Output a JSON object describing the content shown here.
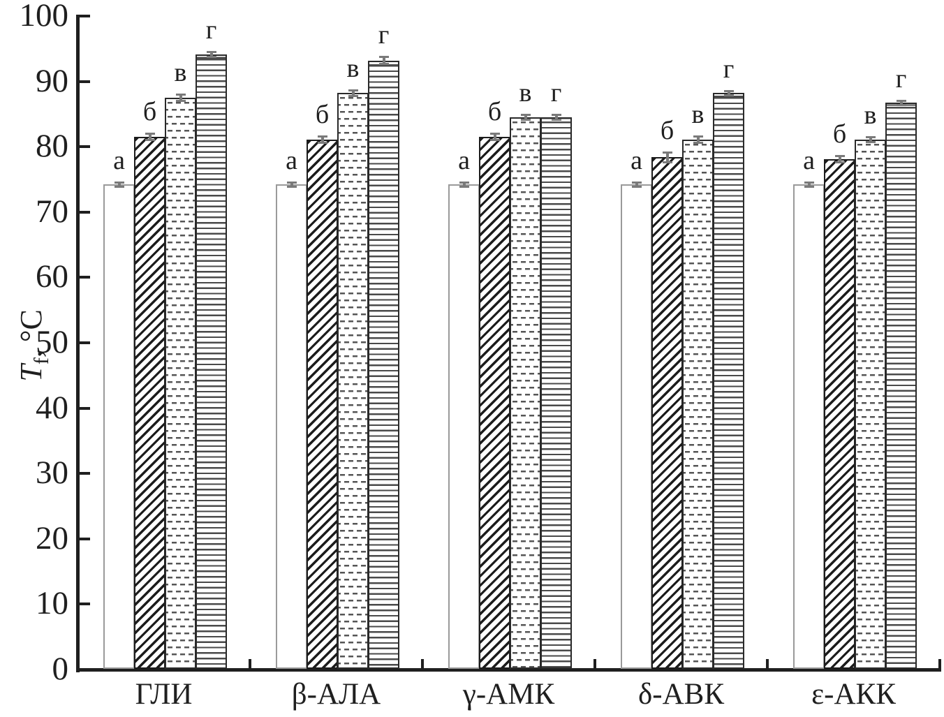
{
  "chart_data": {
    "type": "bar",
    "title": "",
    "ylabel_parts": {
      "symbol": "T",
      "subscript": "f",
      "rest": ", °C"
    },
    "ylim": [
      0,
      100
    ],
    "yticks": [
      0,
      10,
      20,
      30,
      40,
      50,
      60,
      70,
      80,
      90,
      100
    ],
    "categories": [
      "ГЛИ",
      "β-АЛА",
      "γ-АМК",
      "δ-АВК",
      "ε-АКК"
    ],
    "series": [
      {
        "name": "а",
        "pattern": "plain-white",
        "values": [
          74.2,
          74.2,
          74.2,
          74.2,
          74.2
        ],
        "errors": [
          0.4,
          0.4,
          0.4,
          0.4,
          0.4
        ]
      },
      {
        "name": "б",
        "pattern": "diagonal-hatch",
        "values": [
          81.5,
          81.1,
          81.5,
          78.4,
          78.1
        ],
        "errors": [
          0.5,
          0.5,
          0.5,
          0.8,
          0.5
        ]
      },
      {
        "name": "в",
        "pattern": "dashed-dots",
        "values": [
          87.5,
          88.2,
          84.5,
          81.1,
          81.1
        ],
        "errors": [
          0.5,
          0.5,
          0.4,
          0.5,
          0.4
        ]
      },
      {
        "name": "г",
        "pattern": "horizontal-lines",
        "values": [
          94.1,
          93.2,
          84.5,
          88.2,
          86.7
        ],
        "errors": [
          0.4,
          0.6,
          0.4,
          0.4,
          0.4
        ]
      }
    ],
    "bar_top_labels": [
      "а",
      "б",
      "в",
      "г"
    ],
    "grid": false,
    "legend": "none",
    "colors": {
      "ink": "#1f1f1f",
      "plain_bar_border": "#9a9a9a",
      "error_bar": "#7a7a7a",
      "dash_pattern": "#565656",
      "hline_pattern": "#4a4a4a"
    }
  }
}
